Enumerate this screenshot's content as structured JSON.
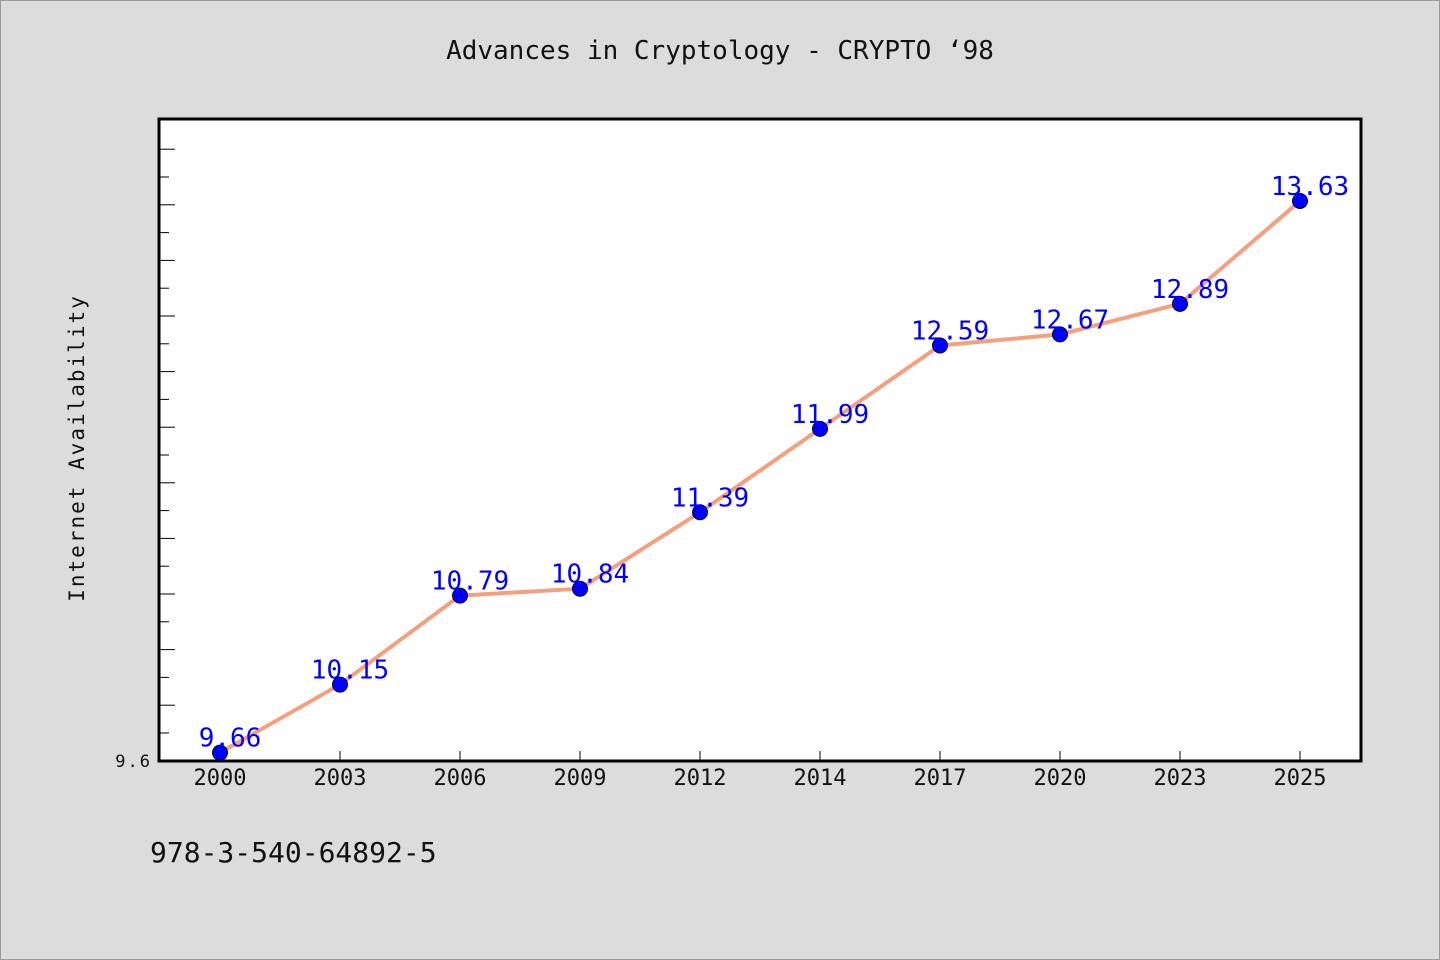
{
  "title": "Advances in Cryptology - CRYPTO  ‘98",
  "footer_text": "978-3-540-64892-5",
  "colors": {
    "background": "#dcdcdc",
    "plot_background": "#ffffff",
    "line": "#f4a07e",
    "marker": "#0000ff",
    "data_label": "#0000ff"
  },
  "chart_data": {
    "type": "line",
    "title": "Advances in Cryptology - CRYPTO  ‘98",
    "xlabel": "",
    "ylabel": "Internet Availability",
    "categories": [
      "2000",
      "2003",
      "2006",
      "2009",
      "2012",
      "2014",
      "2017",
      "2020",
      "2023",
      "2025"
    ],
    "series": [
      {
        "values": [
          9.66,
          10.15,
          10.79,
          10.84,
          11.39,
          11.99,
          12.59,
          12.67,
          12.89,
          13.63
        ]
      }
    ],
    "data_labels": [
      "9.66",
      "10.15",
      "10.79",
      "10.84",
      "11.39",
      "11.99",
      "12.59",
      "12.67",
      "12.89",
      "13.63"
    ],
    "ylim": [
      9.6,
      14.22
    ],
    "y_tick_labels": [
      "9.6"
    ],
    "grid": false,
    "legend": "none"
  }
}
